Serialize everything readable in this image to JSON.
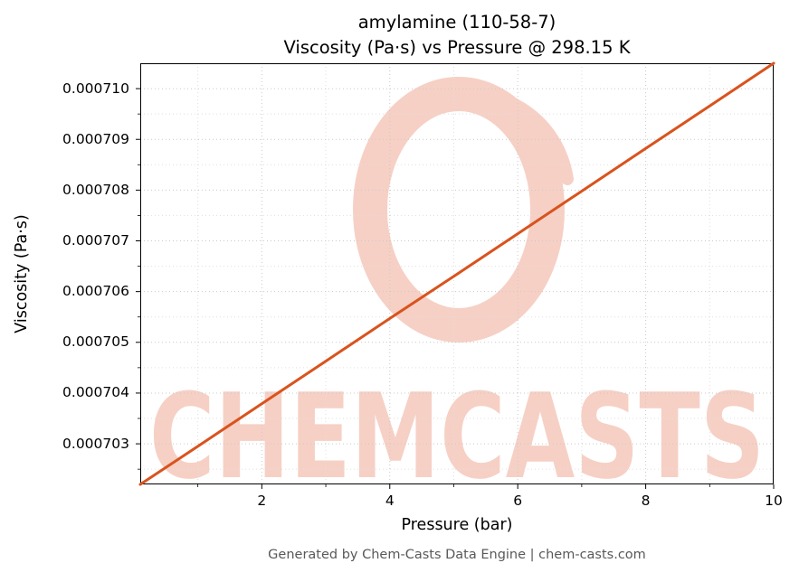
{
  "title": {
    "line1": "amylamine (110-58-7)",
    "line2": "Viscosity (Pa·s) vs Pressure @ 298.15 K"
  },
  "footer": {
    "text": "Generated by Chem-Casts Data Engine | chem-casts.com",
    "color": "#595959"
  },
  "watermark": {
    "text": "CHEMCASTS",
    "color": "#f6d0c5"
  },
  "chart_data": {
    "type": "line",
    "title": "amylamine (110-58-7)\nViscosity (Pa·s) vs Pressure @ 298.15 K",
    "xlabel": "Pressure (bar)",
    "ylabel": "Viscosity (Pa·s)",
    "x": [
      0.1,
      1,
      2,
      3,
      4,
      5,
      6,
      7,
      8,
      9,
      10
    ],
    "y": [
      0.0007022,
      0.00070295,
      0.00070379,
      0.00070463,
      0.00070547,
      0.0007063,
      0.00070714,
      0.00070798,
      0.00070882,
      0.00070966,
      0.0007105
    ],
    "xlim": [
      0.1,
      10
    ],
    "ylim": [
      0.0007022,
      0.0007105
    ],
    "xtick_values": [
      2,
      4,
      6,
      8,
      10
    ],
    "xtick_labels": [
      "2",
      "4",
      "6",
      "8",
      "10"
    ],
    "ytick_values": [
      0.000703,
      0.000704,
      0.000705,
      0.000706,
      0.000707,
      0.000708,
      0.000709,
      0.00071
    ],
    "ytick_labels": [
      "0.000703",
      "0.000704",
      "0.000705",
      "0.000706",
      "0.000707",
      "0.000708",
      "0.000709",
      "0.000710"
    ],
    "x_minor": [
      1,
      3,
      5,
      7,
      9
    ],
    "y_minor": [
      0.0007025,
      0.0007035,
      0.0007045,
      0.0007055,
      0.0007065,
      0.0007075,
      0.0007085,
      0.0007095
    ],
    "grid": true,
    "grid_style": "dotted",
    "grid_major_color": "#c9c9c9",
    "grid_minor_color": "#dfdfdf",
    "line_color": "#d9531e",
    "line_width": 3,
    "legend": null
  }
}
